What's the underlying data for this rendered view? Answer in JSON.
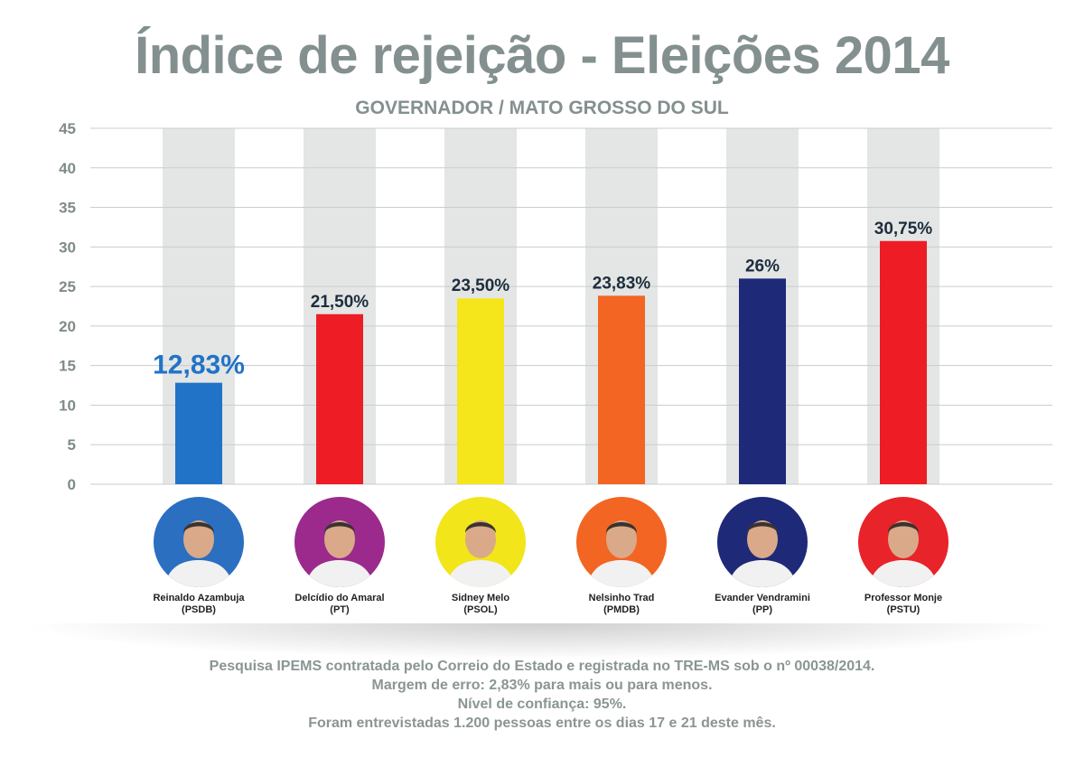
{
  "title": "Índice de rejeição - Eleições 2014",
  "subtitle": "GOVERNADOR / MATO GROSSO DO SUL",
  "chart_data": {
    "type": "bar",
    "ylim": [
      0,
      45
    ],
    "yticks": [
      0,
      5,
      10,
      15,
      20,
      25,
      30,
      35,
      40,
      45
    ],
    "grid": true,
    "categories": [
      "Reinaldo Azambuja",
      "Delcídio do Amaral",
      "Sidney Melo",
      "Nelsinho Trad",
      "Evander Vendramini",
      "Professor Monje"
    ],
    "values": [
      12.83,
      21.5,
      23.5,
      23.83,
      26,
      30.75
    ],
    "data_labels": [
      "12,83%",
      "21,50%",
      "23,50%",
      "23,83%",
      "26%",
      "30,75%"
    ],
    "colors": [
      "#2173c7",
      "#ee1c25",
      "#f5e51b",
      "#f26522",
      "#1e2a78",
      "#ee1c25"
    ],
    "label_colors": [
      "#2173c7",
      "#1e2d3d",
      "#1e2d3d",
      "#1e2d3d",
      "#1e2d3d",
      "#1e2d3d"
    ]
  },
  "candidates": [
    {
      "name": "Reinaldo Azambuja",
      "party": "(PSDB)",
      "photo_bg": "#2b6fc0"
    },
    {
      "name": "Delcídio do Amaral",
      "party": "(PT)",
      "photo_bg": "#9b2a8c"
    },
    {
      "name": "Sidney Melo",
      "party": "(PSOL)",
      "photo_bg": "#f2e51a"
    },
    {
      "name": "Nelsinho Trad",
      "party": "(PMDB)",
      "photo_bg": "#f26522"
    },
    {
      "name": "Evander Vendramini",
      "party": "(PP)",
      "photo_bg": "#1e2a78"
    },
    {
      "name": "Professor Monje",
      "party": "(PSTU)",
      "photo_bg": "#e8232a"
    }
  ],
  "footer": {
    "line1": "Pesquisa IPEMS contratada pelo Correio do Estado e registrada no TRE-MS sob o nº 00038/2014.",
    "line2": "Margem de erro: 2,83% para mais ou para menos.",
    "line3": "Nível de confiança: 95%.",
    "line4": "Foram entrevistadas 1.200 pessoas entre os dias 17 e 21 deste mês."
  }
}
